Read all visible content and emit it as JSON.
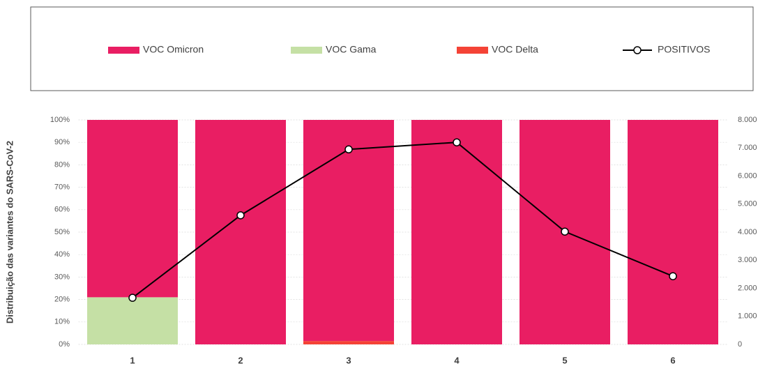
{
  "chart_data": {
    "type": "bar",
    "stacked": true,
    "y_axis_label": "Distribuição das variantes do SARS-CoV-2",
    "categories": [
      "1",
      "2",
      "3",
      "4",
      "5",
      "6"
    ],
    "series": [
      {
        "name": "VOC Omicron",
        "color": "#e91e63",
        "values": [
          79,
          100,
          98.5,
          100,
          100,
          100
        ]
      },
      {
        "name": "VOC Gama",
        "color": "#c5e0a5",
        "values": [
          21,
          0,
          0,
          0,
          0,
          0
        ]
      },
      {
        "name": "VOC Delta",
        "color": "#f44336",
        "values": [
          0,
          0,
          1.5,
          0,
          0,
          0
        ]
      },
      {
        "name": "POSITIVOS",
        "type": "line",
        "axis": "y2",
        "color": "#000000",
        "values": [
          1660,
          4600,
          6950,
          7200,
          4020,
          2430
        ]
      }
    ],
    "ylim": [
      0,
      100
    ],
    "yticks": [
      {
        "value": 0,
        "label": "0%"
      },
      {
        "value": 10,
        "label": "10%"
      },
      {
        "value": 20,
        "label": "20%"
      },
      {
        "value": 30,
        "label": "30%"
      },
      {
        "value": 40,
        "label": "40%"
      },
      {
        "value": 50,
        "label": "50%"
      },
      {
        "value": 60,
        "label": "60%"
      },
      {
        "value": 70,
        "label": "70%"
      },
      {
        "value": 80,
        "label": "80%"
      },
      {
        "value": 90,
        "label": "90%"
      },
      {
        "value": 100,
        "label": "100%"
      }
    ],
    "y2lim": [
      0,
      8000
    ],
    "y2ticks": [
      0,
      {
        "value": 1000,
        "label": "1.000"
      },
      {
        "value": 2000,
        "label": "2.000"
      },
      {
        "value": 3000,
        "label": "3.000"
      },
      {
        "value": 4000,
        "label": "4.000"
      },
      {
        "value": 5000,
        "label": "5.000"
      },
      {
        "value": 6000,
        "label": "6.000"
      },
      {
        "value": 7000,
        "label": "7.000"
      },
      {
        "value": 8000,
        "label": "8.000"
      }
    ],
    "grid": true,
    "legend": "top"
  }
}
